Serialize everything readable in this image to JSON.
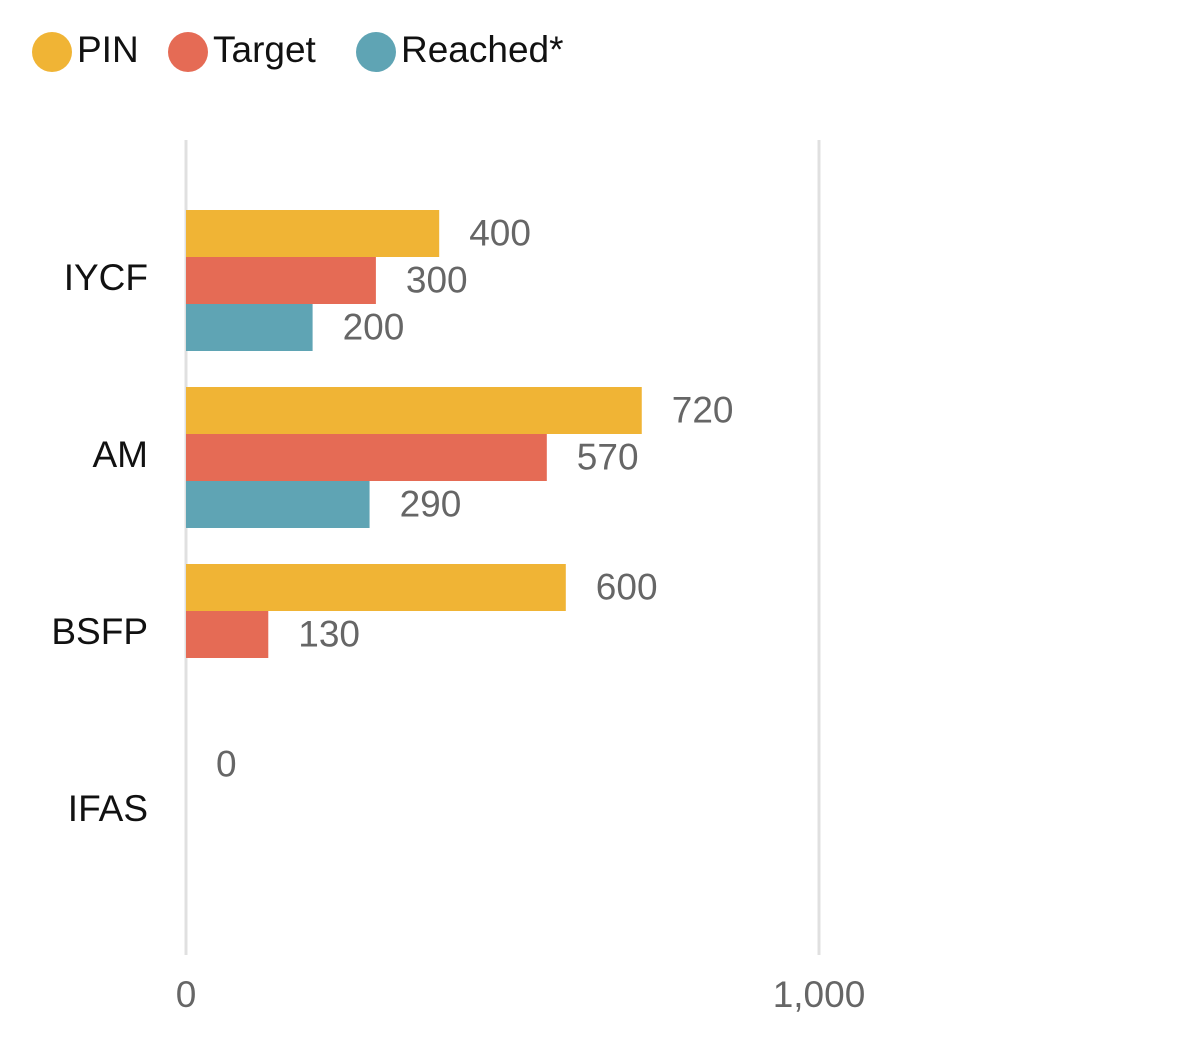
{
  "chart_data": {
    "type": "bar",
    "orientation": "horizontal",
    "categories": [
      "IYCF",
      "AM",
      "BSFP",
      "IFAS"
    ],
    "series": [
      {
        "name": "PIN",
        "color": "#f0b435",
        "values": [
          400,
          720,
          600,
          0
        ]
      },
      {
        "name": "Target",
        "color": "#e56b55",
        "values": [
          300,
          570,
          130,
          null
        ]
      },
      {
        "name": "Reached*",
        "color": "#5fa4b4",
        "values": [
          200,
          290,
          null,
          null
        ]
      }
    ],
    "xlim": [
      0,
      1000
    ],
    "xticks": [
      0,
      {
        "value": 1000,
        "label": "1,000"
      }
    ],
    "grid": true,
    "legend": "top-left"
  }
}
